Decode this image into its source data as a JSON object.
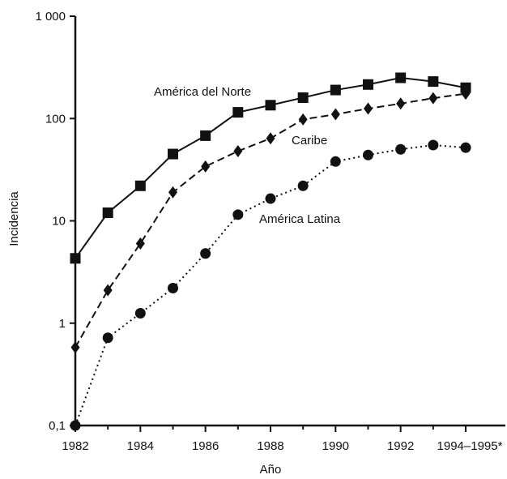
{
  "chart_data": {
    "type": "line",
    "x_tick_labels": [
      "1982",
      "1984",
      "1986",
      "1988",
      "1990",
      "1992",
      "1994–1995*"
    ],
    "x_tick_values": [
      1982,
      1984,
      1986,
      1988,
      1990,
      1992,
      1994
    ],
    "y_tick_labels": [
      "0,1",
      "1",
      "10",
      "100",
      "1 000"
    ],
    "y_tick_values": [
      0.1,
      1,
      10,
      100,
      1000
    ],
    "xlim": [
      1982,
      1994
    ],
    "ylim": [
      0.1,
      1000
    ],
    "y_scale": "log",
    "xlabel": "Año",
    "ylabel": "Incidencia",
    "grid": false,
    "legend": "none",
    "series": [
      {
        "name": "América del Norte",
        "marker": "square",
        "line_style": "solid",
        "x": [
          1982,
          1983,
          1984,
          1985,
          1986,
          1987,
          1988,
          1989,
          1990,
          1991,
          1992,
          1993,
          1994
        ],
        "y": [
          4.3,
          12,
          22,
          45,
          68,
          115,
          135,
          160,
          190,
          215,
          250,
          230,
          200
        ]
      },
      {
        "name": "Caribe",
        "marker": "diamond",
        "line_style": "dashed",
        "x": [
          1982,
          1983,
          1984,
          1985,
          1986,
          1987,
          1988,
          1989,
          1990,
          1991,
          1992,
          1993,
          1994
        ],
        "y": [
          0.58,
          2.1,
          6,
          19,
          34,
          48,
          64,
          98,
          110,
          125,
          140,
          158,
          175
        ]
      },
      {
        "name": "América Latina",
        "marker": "circle",
        "line_style": "dotted",
        "x": [
          1982,
          1983,
          1984,
          1985,
          1986,
          1987,
          1988,
          1989,
          1990,
          1991,
          1992,
          1993,
          1994
        ],
        "y": [
          0.1,
          0.72,
          1.25,
          2.2,
          4.8,
          11.5,
          16.5,
          22,
          38,
          44,
          50,
          55,
          52
        ]
      }
    ]
  }
}
